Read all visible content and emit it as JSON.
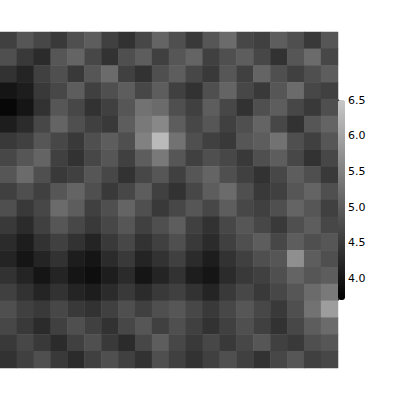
{
  "chart_data": {
    "type": "heatmap",
    "cells": [
      [
        4.6,
        4.9,
        4.7,
        4.5,
        4.8,
        5.0,
        4.6,
        4.4,
        4.7,
        5.1,
        4.8,
        4.5,
        4.9,
        5.2,
        4.7,
        4.6,
        5.0,
        4.8,
        4.5,
        4.9
      ],
      [
        4.8,
        4.5,
        4.3,
        4.9,
        5.1,
        4.7,
        4.4,
        4.8,
        5.0,
        4.6,
        4.9,
        5.1,
        4.6,
        4.8,
        5.0,
        4.7,
        4.4,
        4.9,
        5.2,
        4.7
      ],
      [
        4.4,
        4.2,
        4.6,
        4.8,
        4.5,
        4.9,
        5.2,
        4.6,
        4.4,
        4.8,
        5.0,
        4.7,
        4.5,
        4.9,
        4.6,
        5.1,
        4.8,
        4.6,
        4.8,
        5.0
      ],
      [
        4.0,
        4.1,
        4.5,
        4.7,
        5.0,
        4.6,
        4.8,
        5.0,
        4.7,
        5.0,
        4.6,
        4.4,
        4.8,
        5.1,
        4.7,
        4.5,
        4.9,
        5.2,
        4.7,
        4.6
      ],
      [
        3.8,
        4.0,
        4.4,
        4.9,
        4.7,
        4.4,
        4.6,
        4.9,
        5.3,
        5.2,
        4.8,
        4.6,
        5.0,
        4.7,
        4.4,
        4.8,
        5.0,
        4.7,
        4.5,
        4.8
      ],
      [
        4.1,
        4.3,
        4.7,
        5.1,
        4.8,
        4.6,
        4.5,
        5.0,
        5.4,
        5.6,
        5.0,
        4.7,
        4.9,
        4.6,
        4.8,
        5.1,
        4.7,
        4.4,
        4.9,
        5.1
      ],
      [
        4.5,
        4.6,
        4.9,
        4.7,
        4.5,
        4.8,
        5.0,
        4.8,
        5.5,
        6.3,
        5.3,
        4.8,
        4.6,
        4.5,
        4.9,
        5.0,
        5.3,
        4.8,
        4.6,
        4.9
      ],
      [
        4.7,
        4.9,
        5.1,
        4.6,
        4.4,
        4.7,
        4.9,
        4.6,
        5.0,
        5.4,
        4.9,
        4.6,
        4.8,
        4.7,
        4.5,
        4.8,
        5.0,
        4.7,
        4.4,
        4.7
      ],
      [
        4.9,
        5.2,
        4.8,
        4.5,
        4.6,
        4.9,
        4.7,
        4.4,
        4.7,
        4.9,
        4.6,
        4.9,
        5.1,
        4.8,
        4.6,
        4.4,
        4.7,
        5.0,
        4.8,
        4.5
      ],
      [
        4.6,
        4.8,
        4.6,
        4.9,
        5.1,
        4.8,
        4.5,
        4.7,
        5.0,
        4.6,
        4.4,
        4.7,
        5.0,
        5.2,
        4.8,
        4.5,
        4.6,
        4.9,
        5.1,
        4.8
      ],
      [
        4.8,
        4.5,
        4.7,
        5.2,
        5.0,
        4.6,
        4.8,
        5.1,
        4.8,
        4.5,
        4.7,
        4.9,
        4.7,
        5.0,
        4.7,
        4.6,
        4.8,
        5.1,
        4.9,
        4.6
      ],
      [
        4.5,
        4.3,
        4.6,
        4.9,
        4.7,
        4.5,
        4.7,
        4.9,
        4.6,
        4.8,
        5.0,
        4.6,
        4.4,
        4.7,
        4.9,
        4.7,
        4.5,
        4.8,
        5.0,
        4.7
      ],
      [
        4.3,
        4.1,
        4.4,
        4.6,
        4.4,
        4.2,
        4.5,
        4.7,
        4.4,
        4.6,
        4.8,
        4.5,
        4.3,
        4.6,
        4.8,
        5.0,
        4.7,
        5.0,
        4.8,
        4.9
      ],
      [
        4.2,
        4.0,
        4.2,
        4.4,
        4.1,
        4.0,
        4.3,
        4.5,
        4.2,
        4.4,
        4.6,
        4.3,
        4.1,
        4.4,
        4.6,
        4.8,
        4.9,
        5.7,
        5.0,
        4.8
      ],
      [
        4.4,
        4.2,
        4.0,
        4.2,
        4.0,
        3.9,
        4.1,
        4.3,
        4.0,
        4.2,
        4.4,
        4.1,
        4.0,
        4.3,
        4.5,
        4.6,
        4.8,
        5.1,
        4.9,
        5.0
      ],
      [
        4.6,
        4.4,
        4.2,
        4.4,
        4.2,
        4.1,
        4.3,
        4.5,
        4.3,
        4.5,
        4.6,
        4.4,
        4.2,
        4.5,
        4.7,
        4.5,
        4.7,
        4.9,
        5.2,
        5.4
      ],
      [
        4.8,
        4.6,
        4.5,
        4.7,
        4.5,
        4.4,
        4.6,
        4.8,
        4.6,
        4.8,
        4.9,
        4.7,
        4.5,
        4.7,
        4.9,
        4.7,
        4.5,
        4.8,
        5.3,
        5.9
      ],
      [
        4.7,
        4.5,
        4.3,
        4.6,
        4.8,
        4.6,
        4.4,
        4.7,
        4.9,
        4.6,
        4.8,
        4.6,
        4.4,
        4.6,
        4.8,
        4.6,
        4.4,
        4.7,
        5.0,
        5.2
      ],
      [
        4.5,
        4.7,
        4.5,
        4.3,
        4.6,
        4.8,
        4.5,
        4.3,
        4.7,
        5.0,
        4.7,
        4.5,
        4.7,
        4.5,
        4.7,
        4.9,
        4.6,
        4.5,
        4.8,
        4.9
      ],
      [
        4.4,
        4.6,
        4.8,
        4.5,
        4.3,
        4.6,
        4.8,
        4.6,
        4.4,
        4.8,
        4.6,
        4.4,
        4.6,
        4.8,
        4.6,
        4.4,
        4.7,
        4.9,
        4.6,
        4.7
      ]
    ],
    "color_range": [
      3.7,
      6.5
    ],
    "color_ticks": [
      {
        "value": 4,
        "label": "4.0"
      },
      4.5,
      {
        "value": 5,
        "label": "5.0"
      },
      5.5,
      {
        "value": 6,
        "label": "6.0"
      },
      6.5
    ],
    "tick_labels": false
  }
}
